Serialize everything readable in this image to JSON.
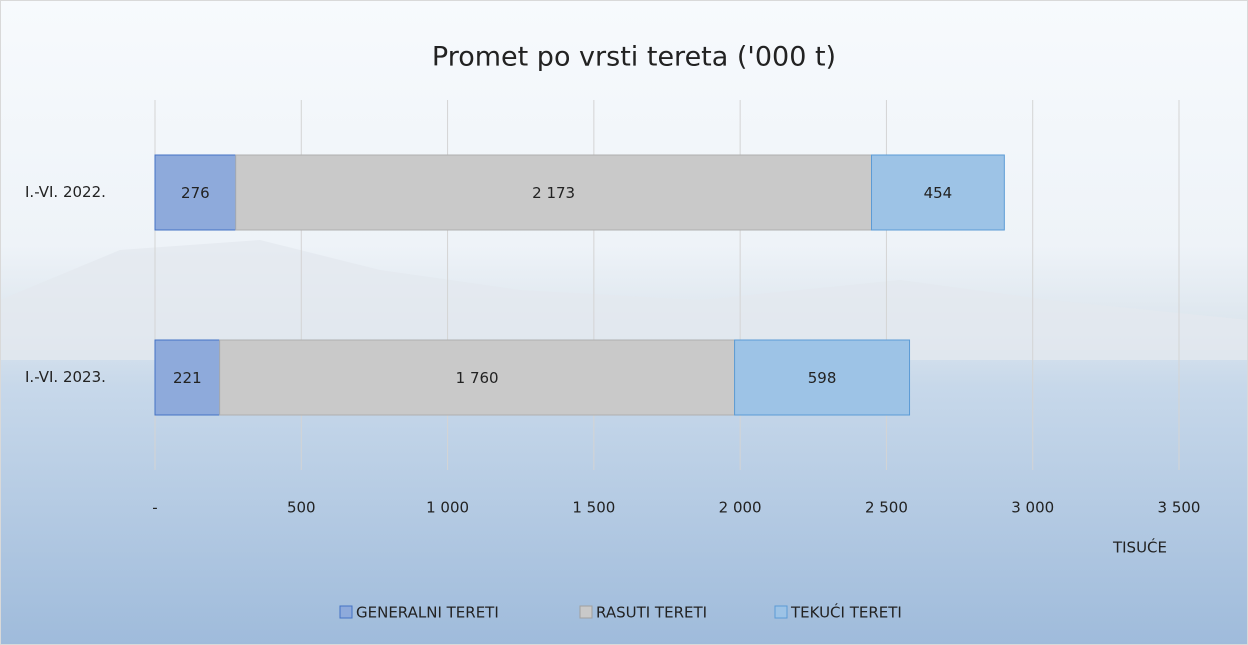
{
  "chart_data": {
    "type": "stacked-bar-horizontal",
    "title": "Promet po vrsti tereta ('000 t)",
    "x_unit_label": "TISUĆE",
    "categories": [
      "I.-VI. 2022.",
      "I.-VI. 2023."
    ],
    "series": [
      {
        "name": "GENERALNI TERETI",
        "color": "#8eaadb",
        "values": [
          276,
          221
        ]
      },
      {
        "name": "RASUTI TERETI",
        "color": "#c9c9c9",
        "values": [
          2173,
          1760
        ],
        "value_labels": [
          "2 173",
          "1 760"
        ]
      },
      {
        "name": "TEKUĆI TERETI",
        "color": "#9dc3e6",
        "values": [
          454,
          598
        ]
      }
    ],
    "xlim": [
      0,
      3500
    ],
    "xticks": [
      {
        "value": 0,
        "label": "-"
      },
      500,
      {
        "value": 1000,
        "label": "1 000"
      },
      {
        "value": 1500,
        "label": "1 500"
      },
      {
        "value": 2000,
        "label": "2 000"
      },
      {
        "value": 2500,
        "label": "2 500"
      },
      {
        "value": 3000,
        "label": "3 000"
      },
      {
        "value": 3500,
        "label": "3 500"
      }
    ],
    "grid": true,
    "legend": "bottom"
  }
}
